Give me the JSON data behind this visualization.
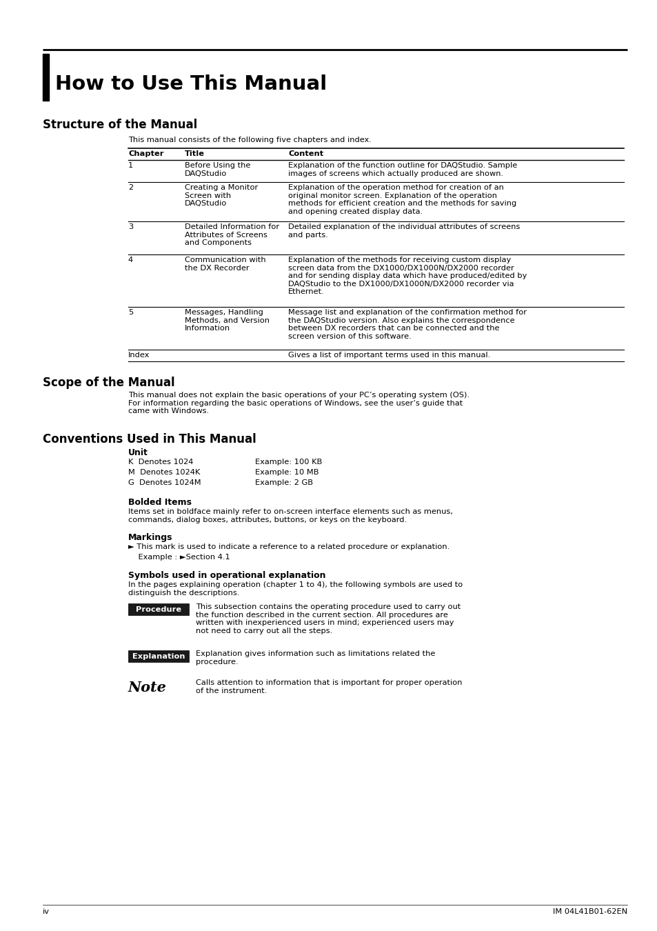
{
  "bg_color": "#ffffff",
  "title": "How to Use This Manual",
  "section1": "Structure of the Manual",
  "section2": "Scope of the Manual",
  "section3": "Conventions Used in This Manual",
  "table_intro": "This manual consists of the following five chapters and index.",
  "table_headers": [
    "Chapter",
    "Title",
    "Content"
  ],
  "table_rows": [
    [
      "1",
      "Before Using the\nDAQStudio",
      "Explanation of the function outline for DAQStudio. Sample\nimages of screens which actually produced are shown."
    ],
    [
      "2",
      "Creating a Monitor\nScreen with\nDAQStudio",
      "Explanation of the operation method for creation of an\noriginal monitor screen. Explanation of the operation\nmethods for efficient creation and the methods for saving\nand opening created display data."
    ],
    [
      "3",
      "Detailed Information for\nAttributes of Screens\nand Components",
      "Detailed explanation of the individual attributes of screens\nand parts."
    ],
    [
      "4",
      "Communication with\nthe DX Recorder",
      "Explanation of the methods for receiving custom display\nscreen data from the DX1000/DX1000N/DX2000 recorder\nand for sending display data which have produced/edited by\nDAQStudio to the DX1000/DX1000N/DX2000 recorder via\nEthernet."
    ],
    [
      "5",
      "Messages, Handling\nMethods, and Version\nInformation",
      "Message list and explanation of the confirmation method for\nthe DAQStudio version. Also explains the correspondence\nbetween DX recorders that can be connected and the\nscreen version of this software."
    ],
    [
      "Index",
      "",
      "Gives a list of important terms used in this manual."
    ]
  ],
  "scope_text": "This manual does not explain the basic operations of your PC’s operating system (OS).\nFor information regarding the basic operations of Windows, see the user’s guide that\ncame with Windows.",
  "unit_title": "Unit",
  "unit_rows": [
    [
      "K  Denotes 1024",
      "Example: 100 KB"
    ],
    [
      "M  Denotes 1024K",
      "Example: 10 MB"
    ],
    [
      "G  Denotes 1024M",
      "Example: 2 GB"
    ]
  ],
  "bolded_title": "Bolded Items",
  "bolded_text": "Items set in boldface mainly refer to on-screen interface elements such as menus,\ncommands, dialog boxes, attributes, buttons, or keys on the keyboard.",
  "markings_title": "Markings",
  "markings_text1": "► This mark is used to indicate a reference to a related procedure or explanation.",
  "markings_text2": "    Example : ►Section 4.1",
  "symbols_title": "Symbols used in operational explanation",
  "symbols_text": "In the pages explaining operation (chapter 1 to 4), the following symbols are used to\ndistinguish the descriptions.",
  "procedure_label": "Procedure",
  "procedure_text": "This subsection contains the operating procedure used to carry out\nthe function described in the current section. All procedures are\nwritten with inexperienced users in mind; experienced users may\nnot need to carry out all the steps.",
  "explanation_label": "Explanation",
  "explanation_text": "Explanation gives information such as limitations related the\nprocedure.",
  "note_label": "Note",
  "note_text": "Calls attention to information that is important for proper operation\nof the instrument.",
  "footer_left": "iv",
  "footer_right": "IM 04L41B01-62EN"
}
